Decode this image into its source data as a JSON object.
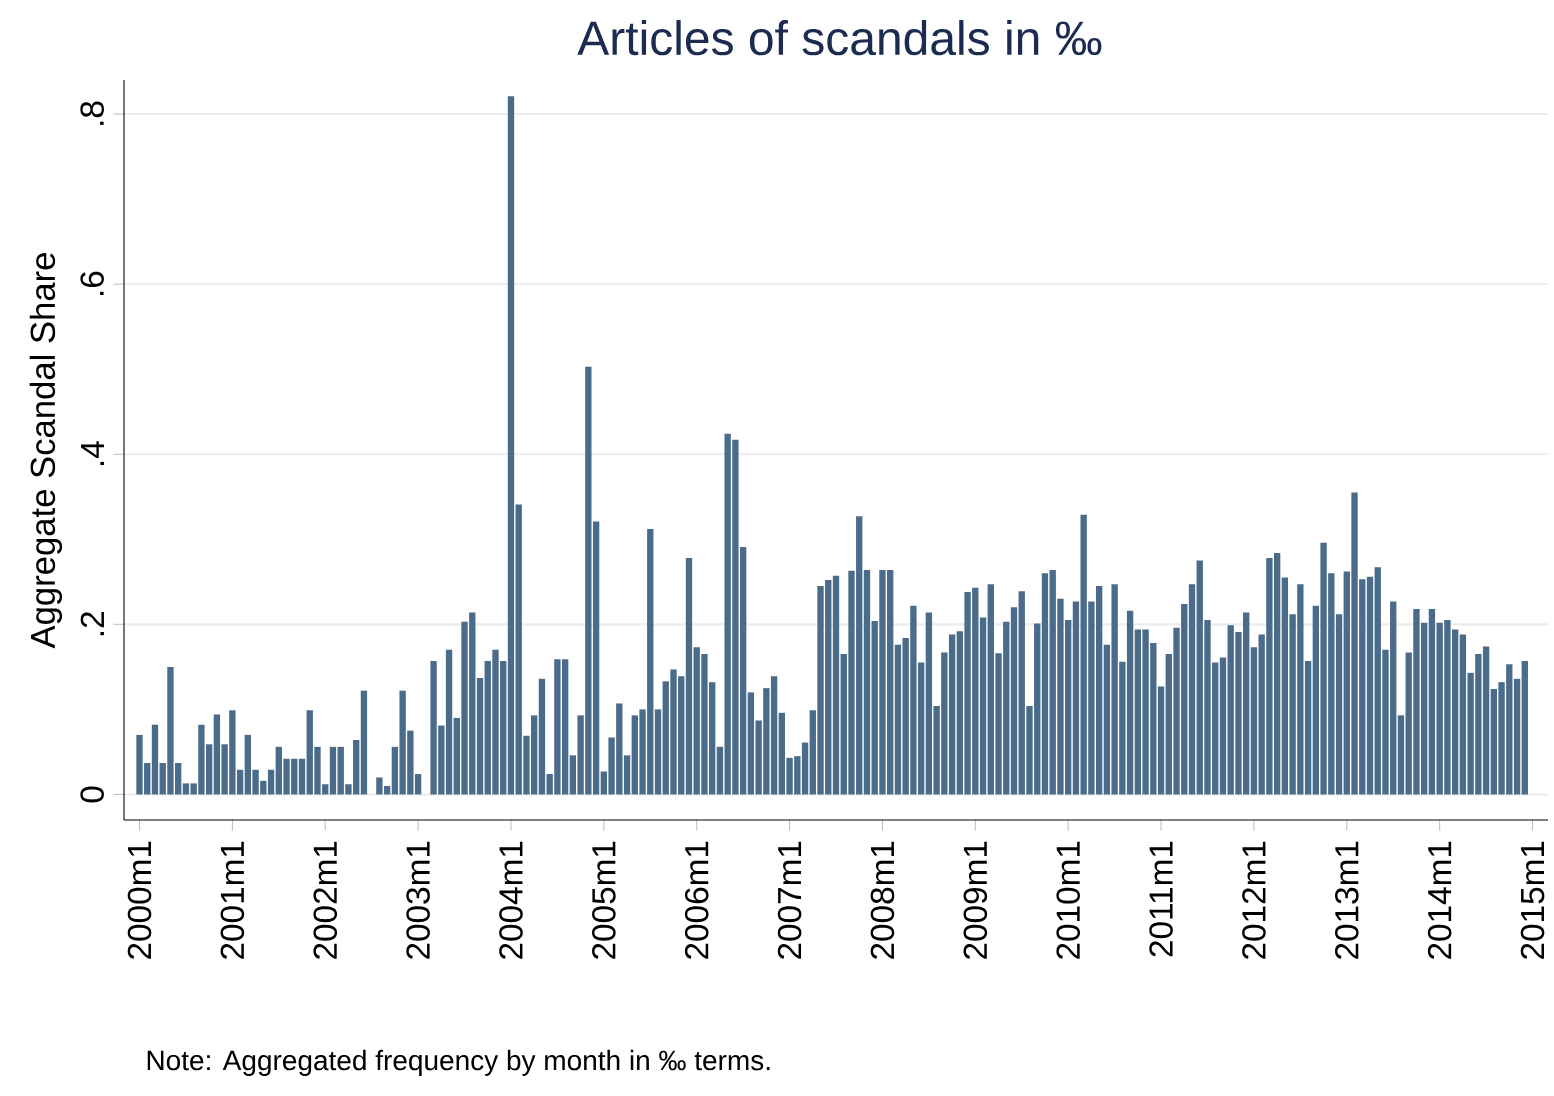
{
  "chart_data": {
    "type": "bar",
    "title": "Articles of scandals in ‰",
    "ylabel": "Aggregate Scandal Share",
    "annotations": [
      "Note: Aggregated frequency by month in ‰ terms."
    ],
    "x": [
      "2000-01",
      "2000-02",
      "2000-03",
      "2000-04",
      "2000-05",
      "2000-06",
      "2000-07",
      "2000-08",
      "2000-09",
      "2000-10",
      "2000-11",
      "2000-12",
      "2001-01",
      "2001-02",
      "2001-03",
      "2001-04",
      "2001-05",
      "2001-06",
      "2001-07",
      "2001-08",
      "2001-09",
      "2001-10",
      "2001-11",
      "2001-12",
      "2002-01",
      "2002-02",
      "2002-03",
      "2002-04",
      "2002-05",
      "2002-06",
      "2002-07",
      "2002-08",
      "2002-09",
      "2002-10",
      "2002-11",
      "2002-12",
      "2003-01",
      "2003-02",
      "2003-03",
      "2003-04",
      "2003-05",
      "2003-06",
      "2003-07",
      "2003-08",
      "2003-09",
      "2003-10",
      "2003-11",
      "2003-12",
      "2004-01",
      "2004-02",
      "2004-03",
      "2004-04",
      "2004-05",
      "2004-06",
      "2004-07",
      "2004-08",
      "2004-09",
      "2004-10",
      "2004-11",
      "2004-12",
      "2005-01",
      "2005-02",
      "2005-03",
      "2005-04",
      "2005-05",
      "2005-06",
      "2005-07",
      "2005-08",
      "2005-09",
      "2005-10",
      "2005-11",
      "2005-12",
      "2006-01",
      "2006-02",
      "2006-03",
      "2006-04",
      "2006-05",
      "2006-06",
      "2006-07",
      "2006-08",
      "2006-09",
      "2006-10",
      "2006-11",
      "2006-12",
      "2007-01",
      "2007-02",
      "2007-03",
      "2007-04",
      "2007-05",
      "2007-06",
      "2007-07",
      "2007-08",
      "2007-09",
      "2007-10",
      "2007-11",
      "2007-12",
      "2008-01",
      "2008-02",
      "2008-03",
      "2008-04",
      "2008-05",
      "2008-06",
      "2008-07",
      "2008-08",
      "2008-09",
      "2008-10",
      "2008-11",
      "2008-12",
      "2009-01",
      "2009-02",
      "2009-03",
      "2009-04",
      "2009-05",
      "2009-06",
      "2009-07",
      "2009-08",
      "2009-09",
      "2009-10",
      "2009-11",
      "2009-12",
      "2010-01",
      "2010-02",
      "2010-03",
      "2010-04",
      "2010-05",
      "2010-06",
      "2010-07",
      "2010-08",
      "2010-09",
      "2010-10",
      "2010-11",
      "2010-12",
      "2011-01",
      "2011-02",
      "2011-03",
      "2011-04",
      "2011-05",
      "2011-06",
      "2011-07",
      "2011-08",
      "2011-09",
      "2011-10",
      "2011-11",
      "2011-12",
      "2012-01",
      "2012-02",
      "2012-03",
      "2012-04",
      "2012-05",
      "2012-06",
      "2012-07",
      "2012-08",
      "2012-09",
      "2012-10",
      "2012-11",
      "2012-12",
      "2013-01",
      "2013-02",
      "2013-03",
      "2013-04",
      "2013-05",
      "2013-06",
      "2013-07",
      "2013-08",
      "2013-09",
      "2013-10",
      "2013-11",
      "2013-12",
      "2014-01",
      "2014-02",
      "2014-03",
      "2014-04",
      "2014-05",
      "2014-06",
      "2014-07",
      "2014-08",
      "2014-09",
      "2014-10",
      "2014-11",
      "2014-12"
    ],
    "values": [
      0.07,
      0.037,
      0.082,
      0.037,
      0.15,
      0.037,
      0.013,
      0.013,
      0.082,
      0.059,
      0.094,
      0.059,
      0.099,
      0.029,
      0.07,
      0.029,
      0.016,
      0.029,
      0.056,
      0.042,
      0.042,
      0.042,
      0.099,
      0.056,
      0.012,
      0.056,
      0.056,
      0.012,
      0.064,
      0.122,
      0,
      0.02,
      0.01,
      0.056,
      0.122,
      0.075,
      0.024,
      0,
      0.157,
      0.081,
      0.17,
      0.09,
      0.203,
      0.214,
      0.137,
      0.157,
      0.17,
      0.157,
      0.821,
      0.341,
      0.069,
      0.093,
      0.136,
      0.024,
      0.159,
      0.159,
      0.046,
      0.093,
      0.503,
      0.321,
      0.027,
      0.067,
      0.107,
      0.046,
      0.093,
      0.1,
      0.312,
      0.1,
      0.133,
      0.147,
      0.139,
      0.278,
      0.173,
      0.165,
      0.132,
      0.056,
      0.424,
      0.417,
      0.291,
      0.12,
      0.087,
      0.125,
      0.139,
      0.096,
      0.043,
      0.045,
      0.061,
      0.099,
      0.245,
      0.252,
      0.257,
      0.165,
      0.263,
      0.327,
      0.264,
      0.204,
      0.264,
      0.264,
      0.176,
      0.184,
      0.222,
      0.155,
      0.214,
      0.104,
      0.167,
      0.188,
      0.192,
      0.238,
      0.243,
      0.208,
      0.247,
      0.166,
      0.203,
      0.22,
      0.239,
      0.104,
      0.201,
      0.26,
      0.264,
      0.23,
      0.205,
      0.227,
      0.329,
      0.227,
      0.245,
      0.176,
      0.247,
      0.156,
      0.216,
      0.194,
      0.194,
      0.178,
      0.127,
      0.165,
      0.196,
      0.224,
      0.247,
      0.275,
      0.205,
      0.155,
      0.161,
      0.199,
      0.191,
      0.214,
      0.173,
      0.188,
      0.278,
      0.284,
      0.255,
      0.212,
      0.247,
      0.157,
      0.222,
      0.296,
      0.26,
      0.212,
      0.262,
      0.355,
      0.253,
      0.256,
      0.267,
      0.17,
      0.227,
      0.093,
      0.167,
      0.218,
      0.202,
      0.218,
      0.202,
      0.205,
      0.194,
      0.188,
      0.143,
      0.165,
      0.174,
      0.124,
      0.132,
      0.153,
      0.136,
      0.157
    ],
    "color": "#4a6b8a",
    "xlim": [
      "1999-11",
      "2015-03"
    ],
    "xticks": [
      {
        "value": "2000-01",
        "label": "2000m1"
      },
      {
        "value": "2001-01",
        "label": "2001m1"
      },
      {
        "value": "2002-01",
        "label": "2002m1"
      },
      {
        "value": "2003-01",
        "label": "2003m1"
      },
      {
        "value": "2004-01",
        "label": "2004m1"
      },
      {
        "value": "2005-01",
        "label": "2005m1"
      },
      {
        "value": "2006-01",
        "label": "2006m1"
      },
      {
        "value": "2007-01",
        "label": "2007m1"
      },
      {
        "value": "2008-01",
        "label": "2008m1"
      },
      {
        "value": "2009-01",
        "label": "2009m1"
      },
      {
        "value": "2010-01",
        "label": "2010m1"
      },
      {
        "value": "2011-01",
        "label": "2011m1"
      },
      {
        "value": "2012-01",
        "label": "2012m1"
      },
      {
        "value": "2013-01",
        "label": "2013m1"
      },
      {
        "value": "2014-01",
        "label": "2014m1"
      },
      {
        "value": "2015-01",
        "label": "2015m1"
      }
    ],
    "ylim": [
      -0.03,
      0.84
    ],
    "yticks": [
      {
        "value": 0,
        "label": "0"
      },
      {
        "value": 0.2,
        "label": ".2"
      },
      {
        "value": 0.4,
        "label": ".4"
      },
      {
        "value": 0.6,
        "label": ".6"
      },
      {
        "value": 0.8,
        "label": ".8"
      }
    ],
    "grid": "y"
  }
}
